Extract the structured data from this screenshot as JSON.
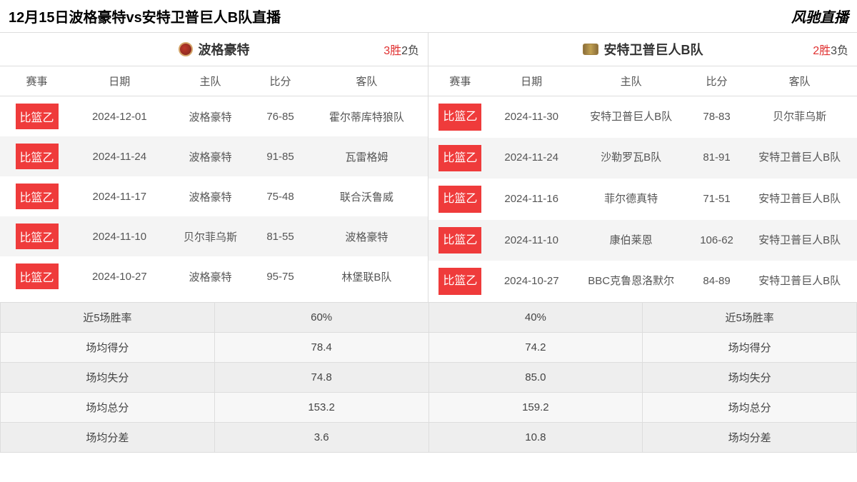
{
  "header": {
    "title": "12月15日波格豪特vs安特卫普巨人B队直播",
    "brand": "风驰直播"
  },
  "columns": {
    "league": "赛事",
    "date": "日期",
    "home": "主队",
    "score": "比分",
    "away": "客队"
  },
  "league_badge": "比篮乙",
  "team_a": {
    "name": "波格豪特",
    "wins": "3胜",
    "losses": "2负",
    "games": [
      {
        "date": "2024-12-01",
        "home": "波格豪特",
        "score": "76-85",
        "away": "霍尔蒂库特狼队"
      },
      {
        "date": "2024-11-24",
        "home": "波格豪特",
        "score": "91-85",
        "away": "瓦雷格姆"
      },
      {
        "date": "2024-11-17",
        "home": "波格豪特",
        "score": "75-48",
        "away": "联合沃鲁威"
      },
      {
        "date": "2024-11-10",
        "home": "贝尔菲乌斯",
        "score": "81-55",
        "away": "波格豪特"
      },
      {
        "date": "2024-10-27",
        "home": "波格豪特",
        "score": "95-75",
        "away": "林堡联B队"
      }
    ]
  },
  "team_b": {
    "name": "安特卫普巨人B队",
    "wins": "2胜",
    "losses": "3负",
    "games": [
      {
        "date": "2024-11-30",
        "home": "安特卫普巨人B队",
        "score": "78-83",
        "away": "贝尔菲乌斯"
      },
      {
        "date": "2024-11-24",
        "home": "沙勒罗瓦B队",
        "score": "81-91",
        "away": "安特卫普巨人B队"
      },
      {
        "date": "2024-11-16",
        "home": "菲尔德真特",
        "score": "71-51",
        "away": "安特卫普巨人B队"
      },
      {
        "date": "2024-11-10",
        "home": "康伯莱恩",
        "score": "106-62",
        "away": "安特卫普巨人B队"
      },
      {
        "date": "2024-10-27",
        "home": "BBC克鲁恩洛默尔",
        "score": "84-89",
        "away": "安特卫普巨人B队"
      }
    ]
  },
  "stats": {
    "rows": [
      {
        "label": "近5场胜率",
        "a": "60%",
        "b": "40%"
      },
      {
        "label": "场均得分",
        "a": "78.4",
        "b": "74.2"
      },
      {
        "label": "场均失分",
        "a": "74.8",
        "b": "85.0"
      },
      {
        "label": "场均总分",
        "a": "153.2",
        "b": "159.2"
      },
      {
        "label": "场均分差",
        "a": "3.6",
        "b": "10.8"
      }
    ]
  }
}
